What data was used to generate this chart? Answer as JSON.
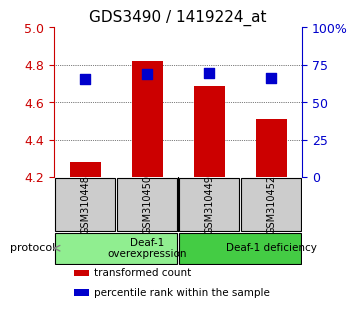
{
  "title": "GDS3490 / 1419224_at",
  "samples": [
    "GSM310448",
    "GSM310450",
    "GSM310449",
    "GSM310452"
  ],
  "bar_values": [
    4.28,
    4.82,
    4.69,
    4.51
  ],
  "bar_bottom": 4.2,
  "percentile_values": [
    0.655,
    0.69,
    0.695,
    0.665
  ],
  "ylim": [
    4.2,
    5.0
  ],
  "yticks_left": [
    4.2,
    4.4,
    4.6,
    4.8,
    5.0
  ],
  "yticks_right": [
    0,
    25,
    50,
    75,
    100
  ],
  "ytick_labels_right": [
    "0",
    "25",
    "50",
    "75",
    "100%"
  ],
  "bar_color": "#cc0000",
  "dot_color": "#0000cc",
  "grid_color": "#000000",
  "groups": [
    {
      "label": "Deaf-1\noverexpression",
      "start": 0,
      "end": 2,
      "color": "#90ee90"
    },
    {
      "label": "Deaf-1 deficiency",
      "start": 2,
      "end": 4,
      "color": "#44cc44"
    }
  ],
  "protocol_label": "protocol",
  "legend_items": [
    {
      "color": "#cc0000",
      "label": "transformed count"
    },
    {
      "color": "#0000cc",
      "label": "percentile rank within the sample"
    }
  ],
  "sample_box_color": "#cccccc",
  "left_tick_color": "#cc0000",
  "right_tick_color": "#0000cc",
  "bar_width": 0.5,
  "dot_size": 60
}
